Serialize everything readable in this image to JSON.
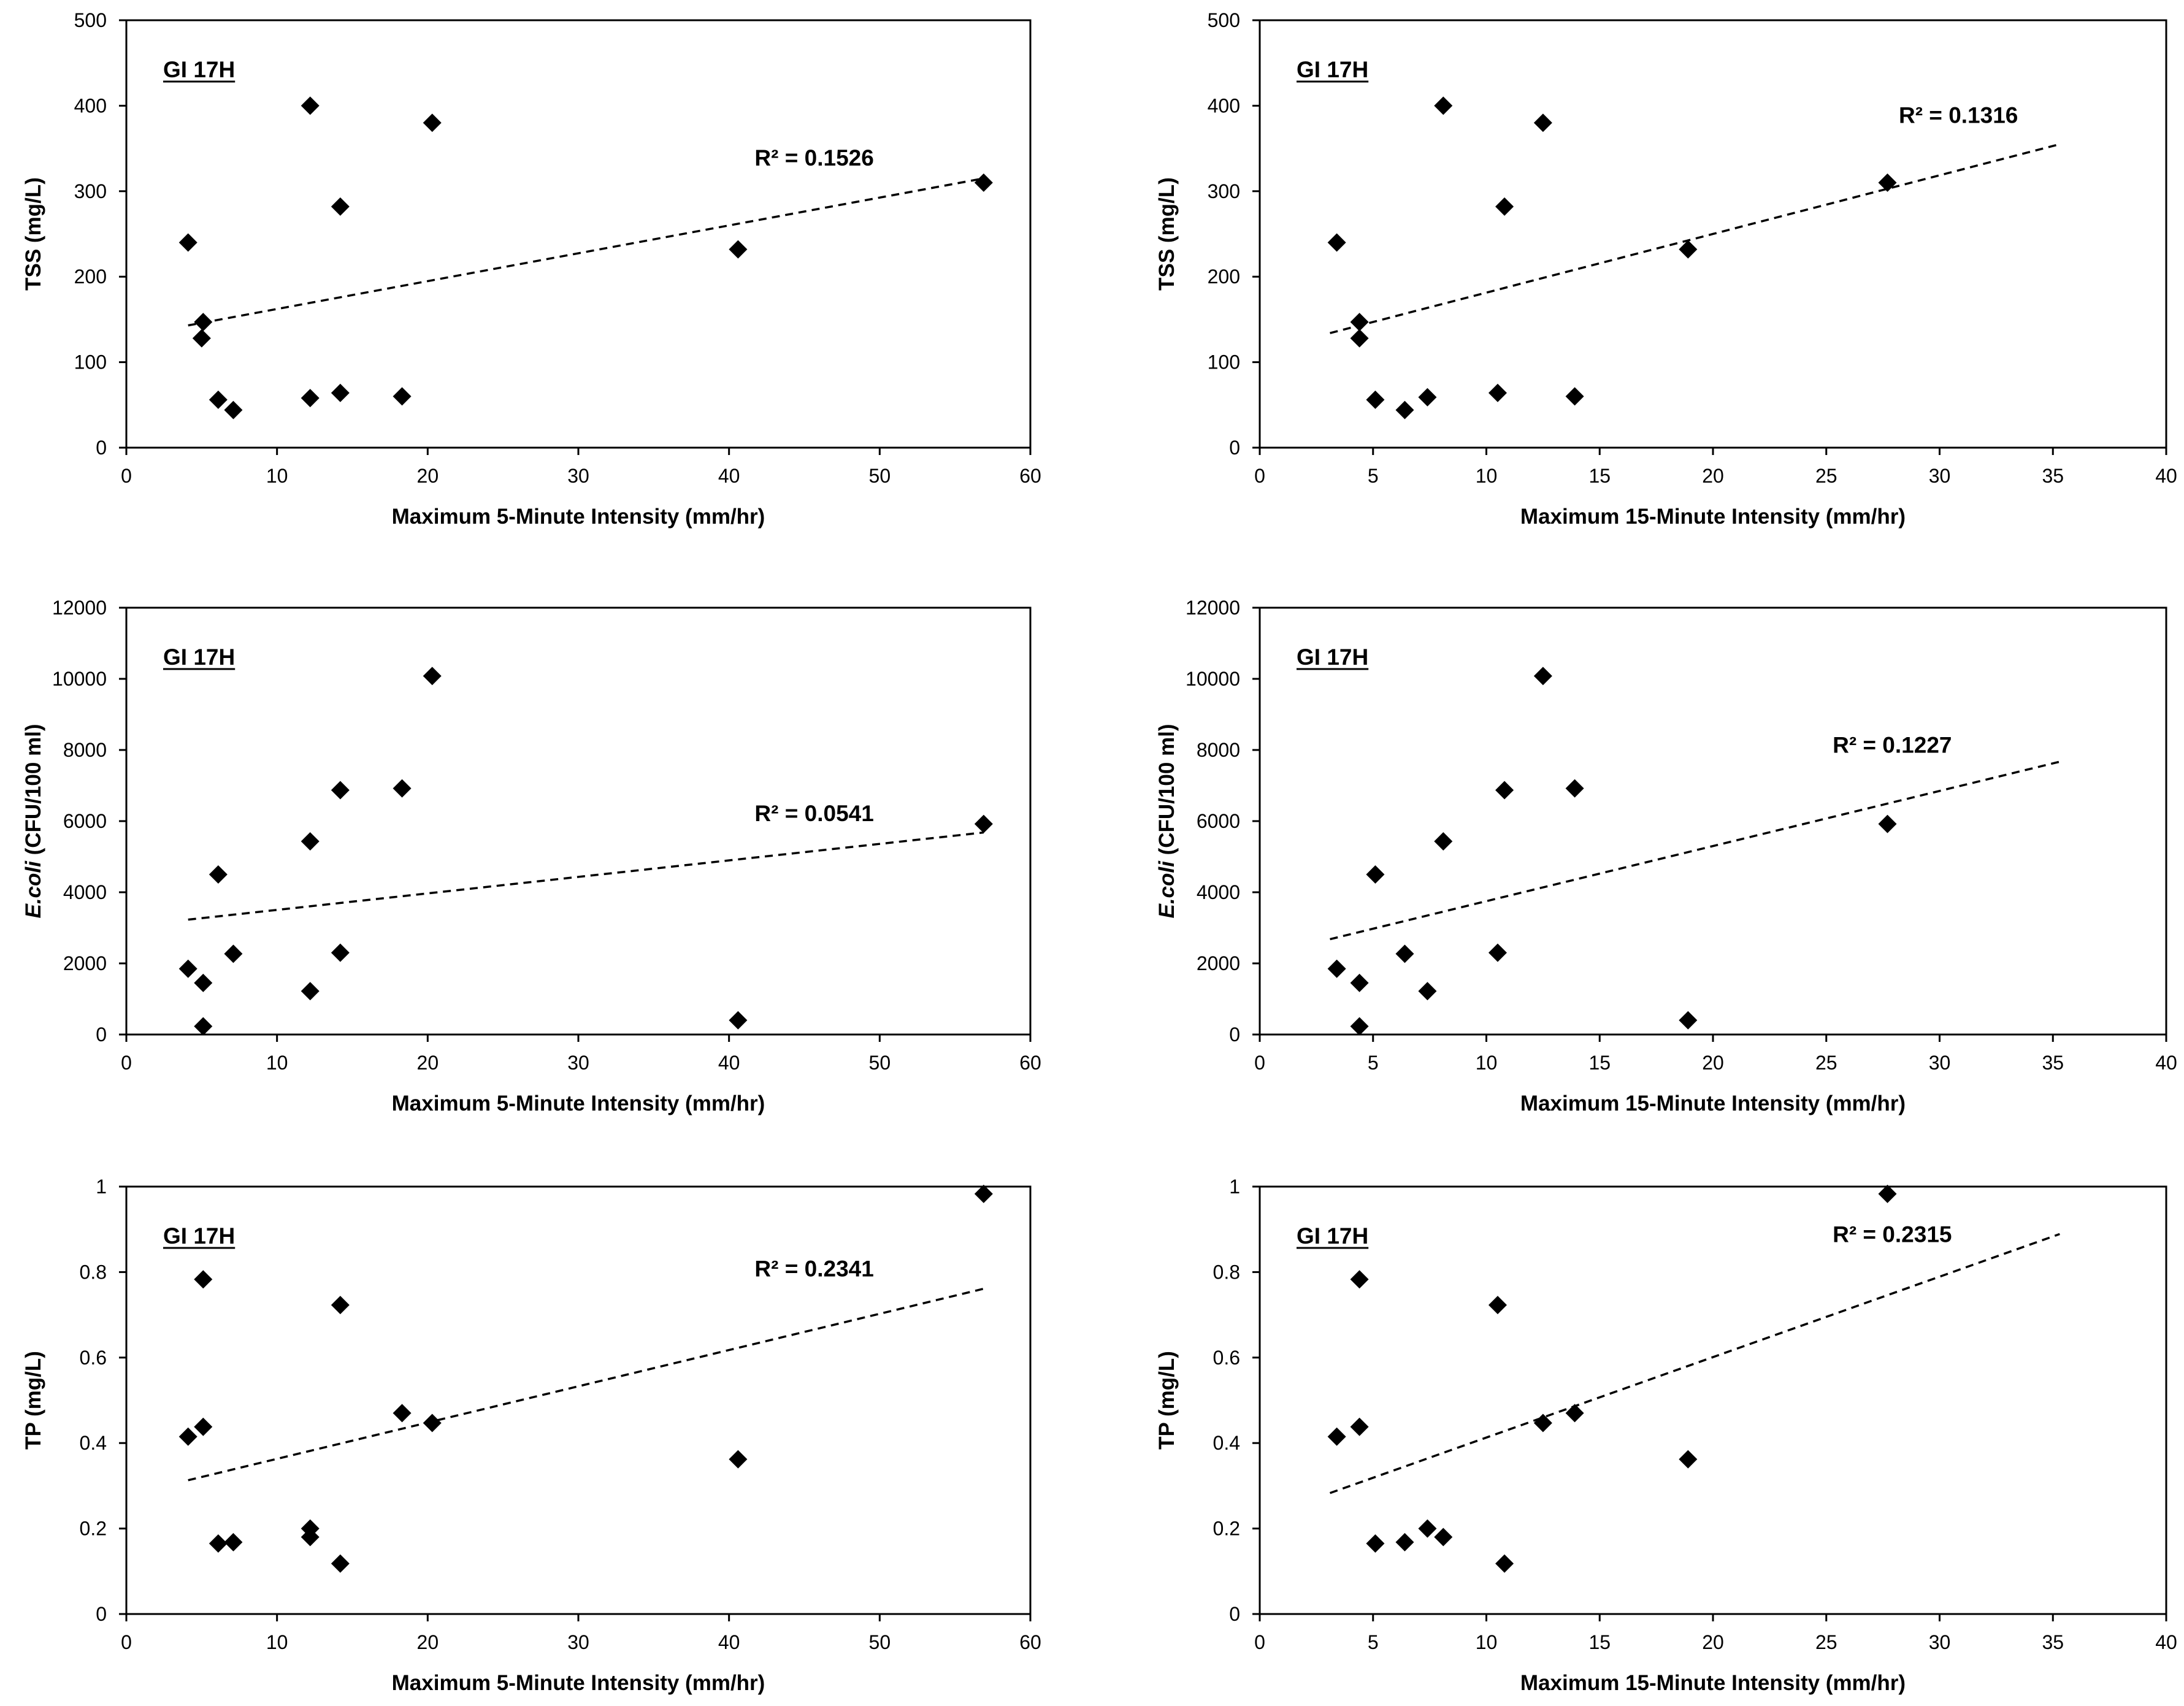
{
  "chart_data": [
    {
      "type": "scatter",
      "panel": "top-left",
      "site_label": "GI 17H",
      "xlabel": "Maximum 5-Minute Intensity (mm/hr)",
      "ylabel": "TSS (mg/L)",
      "ylabel_italic": "",
      "xlim": [
        0,
        60
      ],
      "ylim": [
        0,
        500
      ],
      "xticks": [
        0,
        10,
        20,
        30,
        40,
        50,
        60
      ],
      "yticks": [
        0,
        100,
        200,
        300,
        400,
        500
      ],
      "points": [
        [
          4.1,
          240
        ],
        [
          5.1,
          147
        ],
        [
          5.0,
          128
        ],
        [
          6.1,
          56
        ],
        [
          7.1,
          44
        ],
        [
          12.2,
          400
        ],
        [
          12.2,
          58
        ],
        [
          14.2,
          282
        ],
        [
          14.2,
          64
        ],
        [
          18.3,
          60
        ],
        [
          20.3,
          380
        ],
        [
          40.6,
          232
        ],
        [
          56.9,
          310
        ]
      ],
      "trendline": {
        "x": [
          4.1,
          56.9
        ],
        "y": [
          143,
          315
        ],
        "r2_text": "R² = 0.1526"
      }
    },
    {
      "type": "scatter",
      "panel": "top-right",
      "site_label": "GI 17H",
      "xlabel": "Maximum 15-Minute Intensity (mm/hr)",
      "ylabel": "TSS (mg/L)",
      "ylabel_italic": "",
      "xlim": [
        0,
        40
      ],
      "ylim": [
        0,
        500
      ],
      "xticks": [
        0,
        5,
        10,
        15,
        20,
        25,
        30,
        35,
        40
      ],
      "yticks": [
        0,
        100,
        200,
        300,
        400,
        500
      ],
      "points": [
        [
          3.4,
          240
        ],
        [
          4.4,
          147
        ],
        [
          4.4,
          128
        ],
        [
          5.1,
          56
        ],
        [
          6.4,
          44
        ],
        [
          7.4,
          59
        ],
        [
          8.1,
          400
        ],
        [
          10.5,
          64
        ],
        [
          10.8,
          282
        ],
        [
          12.5,
          380
        ],
        [
          13.9,
          60
        ],
        [
          18.9,
          232
        ],
        [
          27.7,
          310
        ]
      ],
      "trendline": {
        "x": [
          3.1,
          35.3
        ],
        "y": [
          134,
          355
        ],
        "r2_text": "R² = 0.1316"
      }
    },
    {
      "type": "scatter",
      "panel": "middle-left",
      "site_label": "GI 17H",
      "xlabel": "Maximum 5-Minute Intensity (mm/hr)",
      "ylabel": " (CFU/100 ml)",
      "ylabel_italic": "E.coli",
      "xlim": [
        0,
        60
      ],
      "ylim": [
        0,
        12000
      ],
      "xticks": [
        0,
        10,
        20,
        30,
        40,
        50,
        60
      ],
      "yticks": [
        0,
        2000,
        4000,
        6000,
        8000,
        10000,
        12000
      ],
      "points": [
        [
          4.1,
          1850
        ],
        [
          5.1,
          1450
        ],
        [
          5.1,
          230
        ],
        [
          6.1,
          4500
        ],
        [
          7.1,
          2270
        ],
        [
          12.2,
          5430
        ],
        [
          12.2,
          1220
        ],
        [
          14.2,
          6870
        ],
        [
          14.2,
          2300
        ],
        [
          18.3,
          6920
        ],
        [
          20.3,
          10080
        ],
        [
          40.6,
          400
        ],
        [
          56.9,
          5920
        ]
      ],
      "trendline": {
        "x": [
          4.1,
          56.9
        ],
        "y": [
          3230,
          5680
        ],
        "r2_text": "R² = 0.0541"
      }
    },
    {
      "type": "scatter",
      "panel": "middle-right",
      "site_label": "GI 17H",
      "xlabel": "Maximum 15-Minute Intensity (mm/hr)",
      "ylabel": " (CFU/100 ml)",
      "ylabel_italic": "E.coli",
      "xlim": [
        0,
        40
      ],
      "ylim": [
        0,
        12000
      ],
      "xticks": [
        0,
        5,
        10,
        15,
        20,
        25,
        30,
        35,
        40
      ],
      "yticks": [
        0,
        2000,
        4000,
        6000,
        8000,
        10000,
        12000
      ],
      "points": [
        [
          3.4,
          1850
        ],
        [
          4.4,
          1450
        ],
        [
          4.4,
          230
        ],
        [
          5.1,
          4500
        ],
        [
          6.4,
          2270
        ],
        [
          7.4,
          1220
        ],
        [
          8.1,
          5430
        ],
        [
          10.5,
          2300
        ],
        [
          10.8,
          6870
        ],
        [
          12.5,
          10080
        ],
        [
          13.9,
          6920
        ],
        [
          18.9,
          400
        ],
        [
          27.7,
          5920
        ]
      ],
      "trendline": {
        "x": [
          3.1,
          35.3
        ],
        "y": [
          2680,
          7670
        ],
        "r2_text": "R² = 0.1227"
      }
    },
    {
      "type": "scatter",
      "panel": "bottom-left",
      "site_label": "GI 17H",
      "xlabel": "Maximum 5-Minute Intensity (mm/hr)",
      "ylabel": "TP (mg/L)",
      "ylabel_italic": "",
      "xlim": [
        0,
        60
      ],
      "ylim": [
        0,
        1
      ],
      "xticks": [
        0,
        10,
        20,
        30,
        40,
        50,
        60
      ],
      "yticks": [
        0,
        0.2,
        0.4,
        0.6,
        0.8,
        1
      ],
      "points": [
        [
          4.1,
          0.415
        ],
        [
          5.1,
          0.783
        ],
        [
          5.1,
          0.438
        ],
        [
          6.1,
          0.165
        ],
        [
          7.1,
          0.168
        ],
        [
          12.2,
          0.2
        ],
        [
          12.2,
          0.18
        ],
        [
          14.2,
          0.723
        ],
        [
          14.2,
          0.118
        ],
        [
          18.3,
          0.47
        ],
        [
          20.3,
          0.447
        ],
        [
          40.6,
          0.362
        ],
        [
          56.9,
          0.983
        ]
      ],
      "trendline": {
        "x": [
          4.1,
          56.9
        ],
        "y": [
          0.313,
          0.761
        ],
        "r2_text": "R² = 0.2341"
      }
    },
    {
      "type": "scatter",
      "panel": "bottom-right",
      "site_label": "GI 17H",
      "xlabel": "Maximum 15-Minute Intensity (mm/hr)",
      "ylabel": "TP (mg/L)",
      "ylabel_italic": "",
      "xlim": [
        0,
        40
      ],
      "ylim": [
        0,
        1
      ],
      "xticks": [
        0,
        5,
        10,
        15,
        20,
        25,
        30,
        35,
        40
      ],
      "yticks": [
        0,
        0.2,
        0.4,
        0.6,
        0.8,
        1
      ],
      "points": [
        [
          3.4,
          0.415
        ],
        [
          4.4,
          0.783
        ],
        [
          4.4,
          0.438
        ],
        [
          5.1,
          0.165
        ],
        [
          6.4,
          0.168
        ],
        [
          7.4,
          0.2
        ],
        [
          8.1,
          0.18
        ],
        [
          10.5,
          0.723
        ],
        [
          10.8,
          0.118
        ],
        [
          12.5,
          0.447
        ],
        [
          13.9,
          0.47
        ],
        [
          18.9,
          0.362
        ],
        [
          27.7,
          0.983
        ]
      ],
      "trendline": {
        "x": [
          3.1,
          35.3
        ],
        "y": [
          0.283,
          0.889
        ],
        "r2_text": "R² = 0.2315"
      }
    }
  ]
}
